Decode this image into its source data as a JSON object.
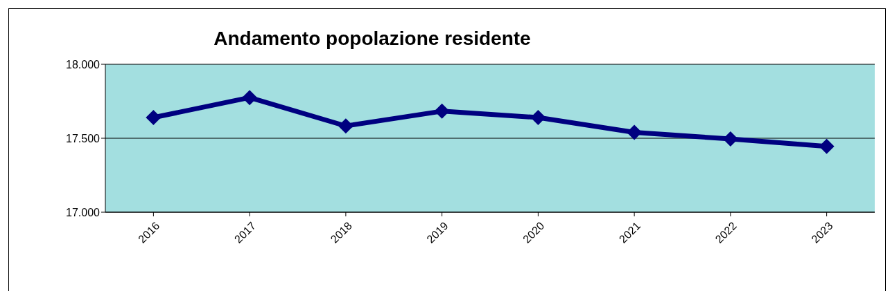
{
  "chart_data": {
    "type": "line",
    "title": "Andamento popolazione residente",
    "categories": [
      "2016",
      "2017",
      "2018",
      "2019",
      "2020",
      "2021",
      "2022",
      "2023"
    ],
    "series": [
      {
        "color": "#000080",
        "values": [
          17640,
          17775,
          17583,
          17683,
          17640,
          17540,
          17495,
          17445
        ]
      }
    ],
    "ylim": [
      17000,
      18000
    ],
    "yticks": [
      {
        "value": 17000,
        "label": "17.000"
      },
      {
        "value": 17500,
        "label": "17.500"
      },
      {
        "value": 18000,
        "label": "18.000"
      }
    ],
    "grid": "y",
    "marker": "diamond",
    "line_style": "solid"
  }
}
